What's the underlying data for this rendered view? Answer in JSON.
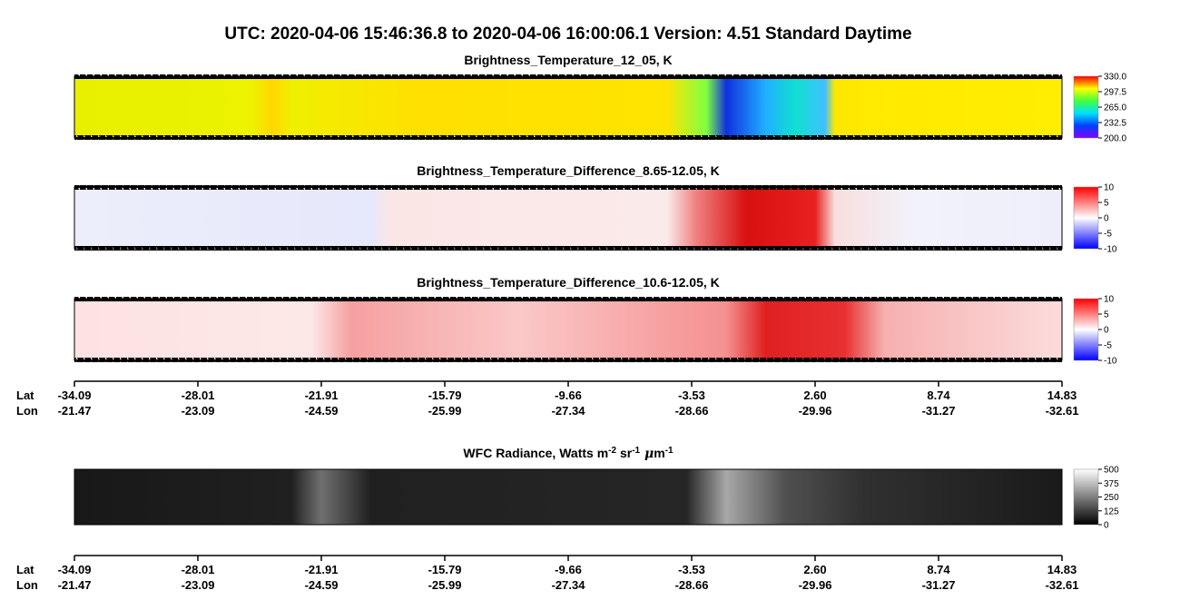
{
  "header": {
    "title": "UTC:  2020-04-06   15:46:36.8  to  2020-04-06   16:00:06.1    Version: 4.51  Standard Daytime"
  },
  "panels": [
    {
      "title": "Brightness_Temperature_12_05, K",
      "colorbar": [
        "330.0",
        "297.5",
        "265.0",
        "232.5",
        "200.0"
      ]
    },
    {
      "title": "Brightness_Temperature_Difference_8.65-12.05, K",
      "colorbar": [
        "10",
        "5",
        "0",
        "-5",
        "-10"
      ]
    },
    {
      "title": "Brightness_Temperature_Difference_10.6-12.05, K",
      "colorbar": [
        "10",
        "5",
        "0",
        "-5",
        "-10"
      ]
    },
    {
      "title": [
        "WFC Radiance, Watts m",
        "-2",
        " sr",
        "-1",
        " μ",
        "m",
        "-1"
      ],
      "colorbar": [
        "500",
        "375",
        "250",
        "125",
        "0"
      ]
    }
  ],
  "axes": [
    {
      "lat_label": "Lat",
      "lon_label": "Lon",
      "lat": [
        "-34.09",
        "-28.01",
        "-21.91",
        "-15.79",
        "-9.66",
        "-3.53",
        "2.60",
        "8.74",
        "14.83"
      ],
      "lon": [
        "-21.47",
        "-23.09",
        "-24.59",
        "-25.99",
        "-27.34",
        "-28.66",
        "-29.96",
        "-31.27",
        "-32.61"
      ]
    },
    {
      "lat_label": "Lat",
      "lon_label": "Lon",
      "lat": [
        "-34.09",
        "-28.01",
        "-21.91",
        "-15.79",
        "-9.66",
        "-3.53",
        "2.60",
        "8.74",
        "14.83"
      ],
      "lon": [
        "-21.47",
        "-23.09",
        "-24.59",
        "-25.99",
        "-27.34",
        "-28.66",
        "-29.96",
        "-31.27",
        "-32.61"
      ]
    }
  ]
}
